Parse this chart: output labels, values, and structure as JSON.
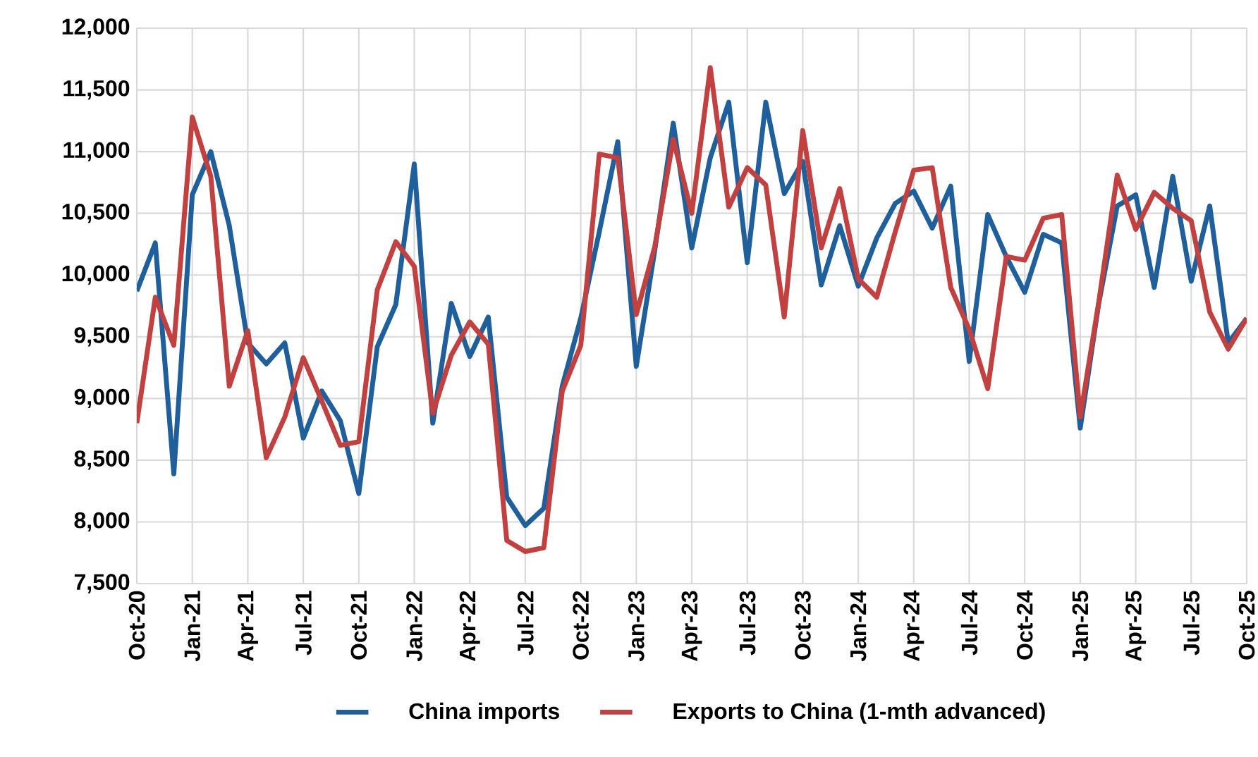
{
  "chart_data": {
    "type": "line",
    "categories": [
      "Oct-20",
      null,
      null,
      "Jan-21",
      null,
      null,
      "Apr-21",
      null,
      null,
      "Jul-21",
      null,
      null,
      "Oct-21",
      null,
      null,
      "Jan-22",
      null,
      null,
      "Apr-22",
      null,
      null,
      "Jul-22",
      null,
      null,
      "Oct-22",
      null,
      null,
      "Jan-23",
      null,
      null,
      "Apr-23",
      null,
      null,
      "Jul-23",
      null,
      null,
      "Oct-23",
      null,
      null,
      "Jan-24",
      null,
      null,
      "Apr-24",
      null,
      null,
      "Jul-24",
      null,
      null,
      "Oct-24",
      null,
      null,
      "Jan-25",
      null,
      null,
      "Apr-25",
      null,
      null,
      "Jul-25",
      null,
      null,
      "Oct-25"
    ],
    "series": [
      {
        "name": "China imports",
        "color": "#1f5f9b",
        "values": [
          9870,
          10260,
          8390,
          10650,
          11000,
          10400,
          9450,
          9280,
          9450,
          8680,
          9060,
          8820,
          8230,
          9420,
          9760,
          10900,
          8800,
          9770,
          9340,
          9660,
          8200,
          7970,
          8110,
          9100,
          9650,
          10350,
          11080,
          9260,
          10200,
          11230,
          10220,
          10950,
          11400,
          10100,
          11400,
          10660,
          10920,
          9920,
          10400,
          9910,
          10300,
          10580,
          10680,
          10380,
          10720,
          9300,
          10490,
          10150,
          9860,
          10330,
          10260,
          8760,
          9770,
          10560,
          10650,
          9900,
          10800,
          9950,
          10560,
          9450,
          9650
        ]
      },
      {
        "name": "Exports to China (1-mth advanced)",
        "color": "#c0413f",
        "values": [
          8800,
          9820,
          9430,
          11280,
          10800,
          9100,
          9550,
          8520,
          8850,
          9330,
          8980,
          8620,
          8650,
          9880,
          10270,
          10070,
          8880,
          9350,
          9620,
          9440,
          7850,
          7760,
          7790,
          9060,
          9430,
          10980,
          10950,
          9680,
          10230,
          11100,
          10500,
          11680,
          10550,
          10870,
          10730,
          9660,
          11170,
          10220,
          10700,
          9970,
          9820,
          10350,
          10850,
          10870,
          9900,
          9560,
          9080,
          10150,
          10120,
          10460,
          10490,
          8850,
          9780,
          10810,
          10370,
          10670,
          10540,
          10440,
          9700,
          9400,
          9650
        ]
      }
    ],
    "ylim": [
      7500,
      12000
    ],
    "yticks": [
      {
        "value": 7500,
        "label": "7,500"
      },
      {
        "value": 8000,
        "label": "8,000"
      },
      {
        "value": 8500,
        "label": "8,500"
      },
      {
        "value": 9000,
        "label": "9,000"
      },
      {
        "value": 9500,
        "label": "9,500"
      },
      {
        "value": 10000,
        "label": "10,000"
      },
      {
        "value": 10500,
        "label": "10,500"
      },
      {
        "value": 11000,
        "label": "11,000"
      },
      {
        "value": 11500,
        "label": "11,500"
      },
      {
        "value": 12000,
        "label": "12,000"
      }
    ],
    "grid": true,
    "legend": "bottom",
    "marker": "none",
    "line_style": "solid"
  }
}
